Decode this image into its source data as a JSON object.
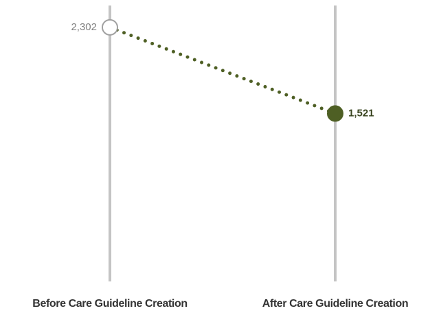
{
  "chart_data": {
    "type": "slope",
    "categories": [
      "Before Care Guideline Creation",
      "After Care Guideline Creation"
    ],
    "values": [
      2302,
      1521
    ],
    "value_labels": [
      "2,302",
      "1,521"
    ],
    "color": "#4e5f24",
    "marker_colors": [
      "#ffffff",
      "#4e5f24"
    ],
    "ylim": [
      0,
      2500
    ]
  }
}
